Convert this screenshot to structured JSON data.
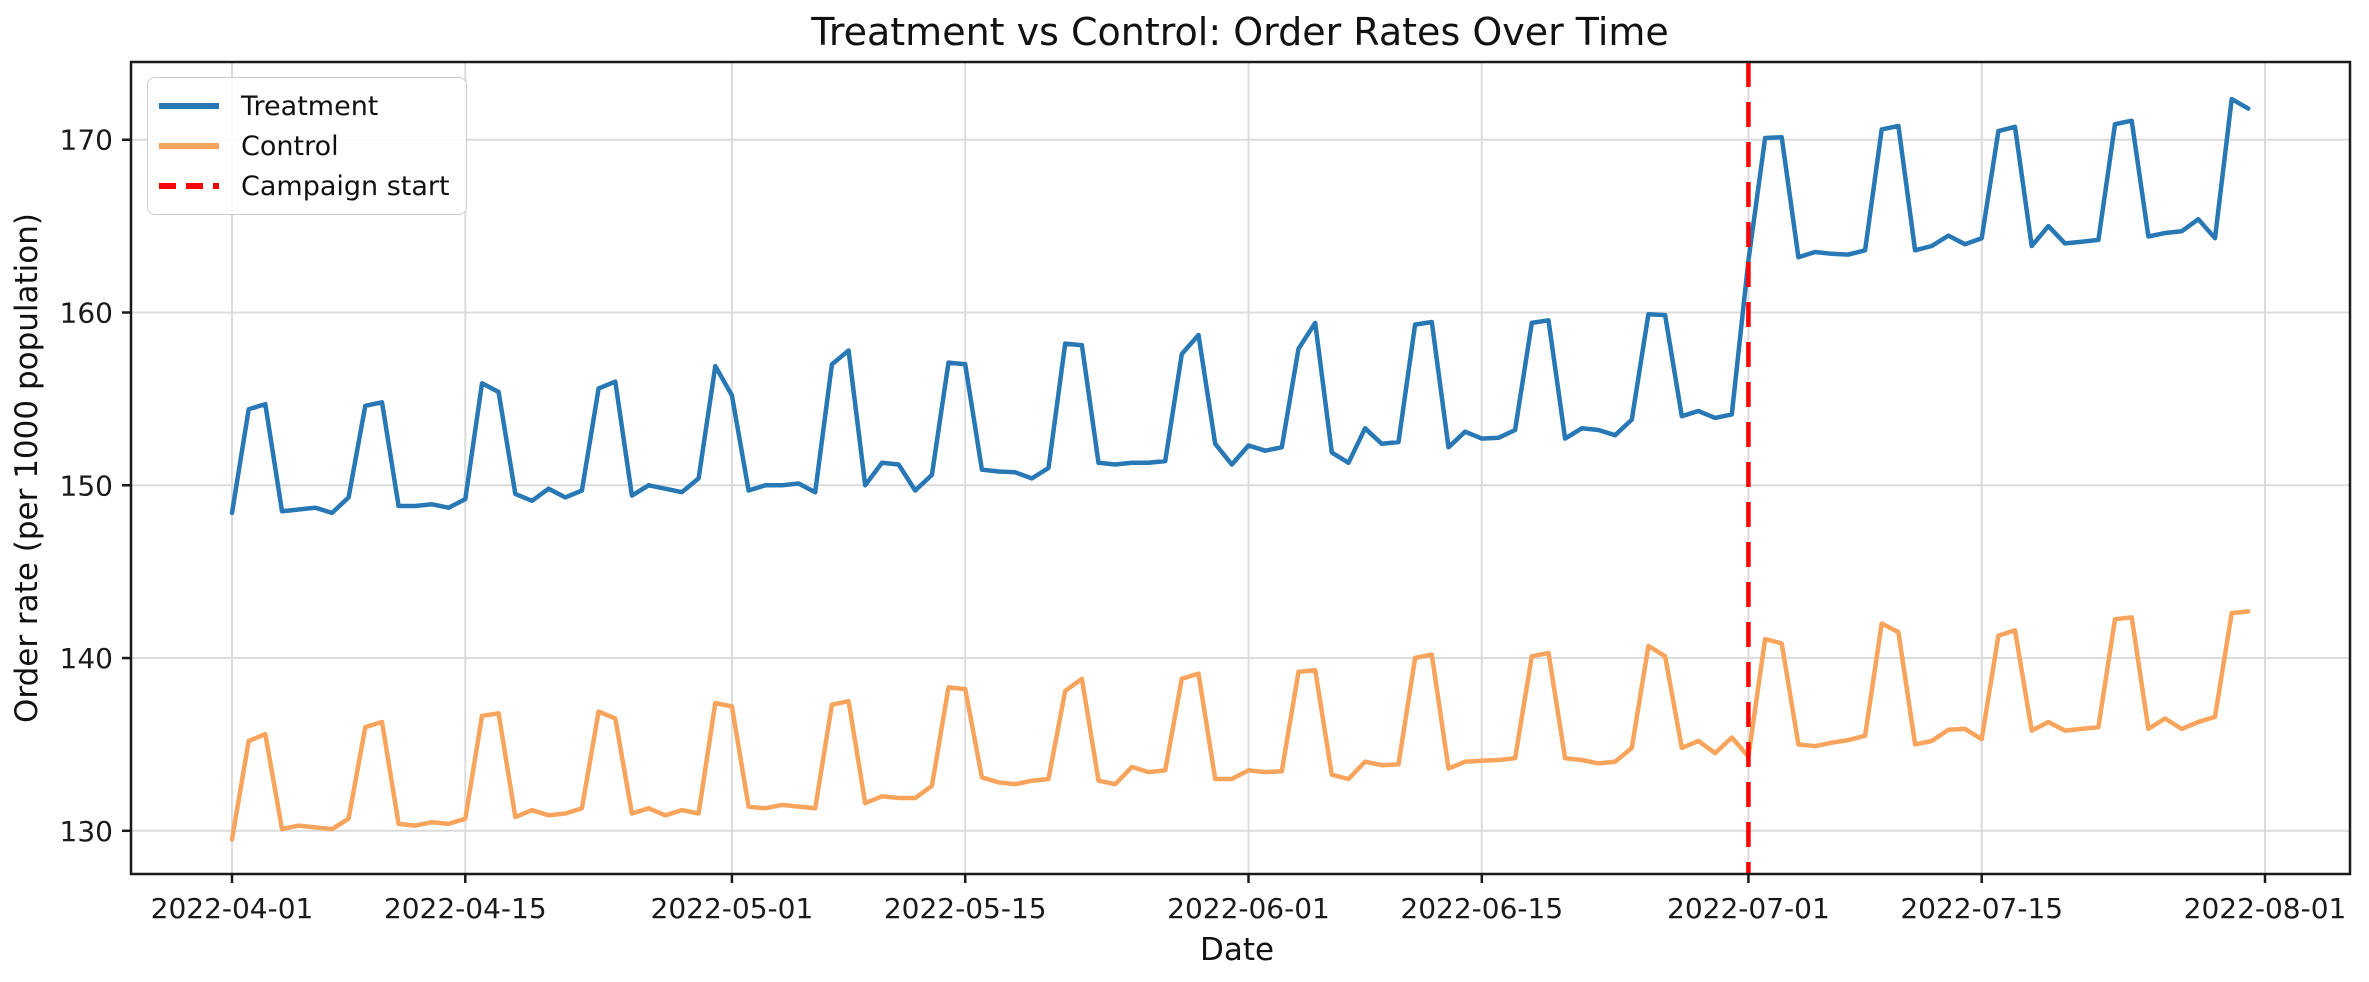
{
  "chart_data": {
    "type": "line",
    "title": "Treatment vs Control: Order Rates Over Time",
    "xlabel": "Date",
    "ylabel": "Order rate (per 1000 population)",
    "grid": true,
    "legend_position": "upper left",
    "ylim": [
      127.5,
      174.5
    ],
    "y_ticks": [
      130,
      140,
      150,
      160,
      170
    ],
    "x_tick_labels": [
      "2022-04-01",
      "2022-04-15",
      "2022-05-01",
      "2022-05-15",
      "2022-06-01",
      "2022-06-15",
      "2022-07-01",
      "2022-07-15",
      "2022-08-01"
    ],
    "colors": {
      "grid": "#dcdcdc",
      "spine": "#1a1a1a",
      "text": "#1a1a1a"
    },
    "vline": {
      "label": "Campaign start",
      "date": "2022-07-01",
      "color": "#ff0000",
      "style": "dashed"
    },
    "dates": [
      "2022-04-01",
      "2022-04-02",
      "2022-04-03",
      "2022-04-04",
      "2022-04-05",
      "2022-04-06",
      "2022-04-07",
      "2022-04-08",
      "2022-04-09",
      "2022-04-10",
      "2022-04-11",
      "2022-04-12",
      "2022-04-13",
      "2022-04-14",
      "2022-04-15",
      "2022-04-16",
      "2022-04-17",
      "2022-04-18",
      "2022-04-19",
      "2022-04-20",
      "2022-04-21",
      "2022-04-22",
      "2022-04-23",
      "2022-04-24",
      "2022-04-25",
      "2022-04-26",
      "2022-04-27",
      "2022-04-28",
      "2022-04-29",
      "2022-04-30",
      "2022-05-01",
      "2022-05-02",
      "2022-05-03",
      "2022-05-04",
      "2022-05-05",
      "2022-05-06",
      "2022-05-07",
      "2022-05-08",
      "2022-05-09",
      "2022-05-10",
      "2022-05-11",
      "2022-05-12",
      "2022-05-13",
      "2022-05-14",
      "2022-05-15",
      "2022-05-16",
      "2022-05-17",
      "2022-05-18",
      "2022-05-19",
      "2022-05-20",
      "2022-05-21",
      "2022-05-22",
      "2022-05-23",
      "2022-05-24",
      "2022-05-25",
      "2022-05-26",
      "2022-05-27",
      "2022-05-28",
      "2022-05-29",
      "2022-05-30",
      "2022-05-31",
      "2022-06-01",
      "2022-06-02",
      "2022-06-03",
      "2022-06-04",
      "2022-06-05",
      "2022-06-06",
      "2022-06-07",
      "2022-06-08",
      "2022-06-09",
      "2022-06-10",
      "2022-06-11",
      "2022-06-12",
      "2022-06-13",
      "2022-06-14",
      "2022-06-15",
      "2022-06-16",
      "2022-06-17",
      "2022-06-18",
      "2022-06-19",
      "2022-06-20",
      "2022-06-21",
      "2022-06-22",
      "2022-06-23",
      "2022-06-24",
      "2022-06-25",
      "2022-06-26",
      "2022-06-27",
      "2022-06-28",
      "2022-06-29",
      "2022-06-30",
      "2022-07-01",
      "2022-07-02",
      "2022-07-03",
      "2022-07-04",
      "2022-07-05",
      "2022-07-06",
      "2022-07-07",
      "2022-07-08",
      "2022-07-09",
      "2022-07-10",
      "2022-07-11",
      "2022-07-12",
      "2022-07-13",
      "2022-07-14",
      "2022-07-15",
      "2022-07-16",
      "2022-07-17",
      "2022-07-18",
      "2022-07-19",
      "2022-07-20",
      "2022-07-21",
      "2022-07-22",
      "2022-07-23",
      "2022-07-24",
      "2022-07-25",
      "2022-07-26",
      "2022-07-27",
      "2022-07-28",
      "2022-07-29",
      "2022-07-30",
      "2022-07-31"
    ],
    "series": [
      {
        "name": "Treatment",
        "color": "#2878b5",
        "values": [
          148.4,
          154.4,
          154.7,
          148.5,
          148.6,
          148.7,
          148.4,
          149.3,
          154.6,
          154.8,
          148.8,
          148.8,
          148.9,
          148.7,
          149.2,
          155.9,
          155.4,
          149.5,
          149.1,
          149.8,
          149.3,
          149.7,
          155.6,
          156.0,
          149.4,
          150.0,
          149.8,
          149.6,
          150.4,
          156.9,
          155.2,
          149.7,
          150.0,
          150.0,
          150.1,
          149.6,
          157.0,
          157.8,
          150.0,
          151.3,
          151.2,
          149.7,
          150.6,
          157.1,
          157.0,
          150.9,
          150.8,
          150.75,
          150.4,
          151.0,
          158.2,
          158.1,
          151.3,
          151.2,
          151.3,
          151.3,
          151.4,
          157.6,
          158.7,
          152.4,
          151.2,
          152.3,
          152.0,
          152.2,
          157.9,
          159.4,
          151.9,
          151.3,
          153.3,
          152.4,
          152.5,
          159.3,
          159.45,
          152.2,
          153.1,
          152.7,
          152.75,
          153.2,
          159.4,
          159.55,
          152.7,
          153.3,
          153.2,
          152.9,
          153.8,
          159.9,
          159.85,
          154.0,
          154.3,
          153.9,
          154.1,
          163.0,
          170.1,
          170.15,
          163.2,
          163.5,
          163.4,
          163.35,
          163.6,
          170.6,
          170.8,
          163.6,
          163.85,
          164.45,
          163.95,
          164.3,
          170.5,
          170.75,
          163.85,
          165.0,
          164.0,
          164.1,
          164.2,
          170.9,
          171.1,
          164.4,
          164.6,
          164.7,
          165.4,
          164.3,
          172.35,
          171.8
        ]
      },
      {
        "name": "Control",
        "color": "#f8a45c",
        "values": [
          129.5,
          135.2,
          135.6,
          130.1,
          130.3,
          130.2,
          130.1,
          130.7,
          136.0,
          136.3,
          130.4,
          130.3,
          130.5,
          130.4,
          130.7,
          136.65,
          136.8,
          130.8,
          131.2,
          130.9,
          131.0,
          131.3,
          136.9,
          136.5,
          131.0,
          131.3,
          130.9,
          131.2,
          131.0,
          137.4,
          137.2,
          131.4,
          131.3,
          131.5,
          131.4,
          131.3,
          137.3,
          137.5,
          131.6,
          132.0,
          131.9,
          131.9,
          132.6,
          138.3,
          138.2,
          133.1,
          132.8,
          132.7,
          132.9,
          133.0,
          138.1,
          138.8,
          132.9,
          132.7,
          133.7,
          133.4,
          133.5,
          138.8,
          139.1,
          133.0,
          133.0,
          133.5,
          133.4,
          133.45,
          139.2,
          139.3,
          133.25,
          133.0,
          134.0,
          133.8,
          133.85,
          140.0,
          140.2,
          133.6,
          134.0,
          134.05,
          134.1,
          134.2,
          140.1,
          140.3,
          134.2,
          134.1,
          133.9,
          134.0,
          134.8,
          140.7,
          140.1,
          134.8,
          135.2,
          134.5,
          135.4,
          134.3,
          141.1,
          140.85,
          135.0,
          134.9,
          135.1,
          135.25,
          135.5,
          142.0,
          141.5,
          135.0,
          135.2,
          135.85,
          135.9,
          135.3,
          141.3,
          141.6,
          135.8,
          136.3,
          135.8,
          135.9,
          136.0,
          142.25,
          142.35,
          135.9,
          136.5,
          135.9,
          136.3,
          136.6,
          142.6,
          142.7
        ]
      }
    ]
  }
}
